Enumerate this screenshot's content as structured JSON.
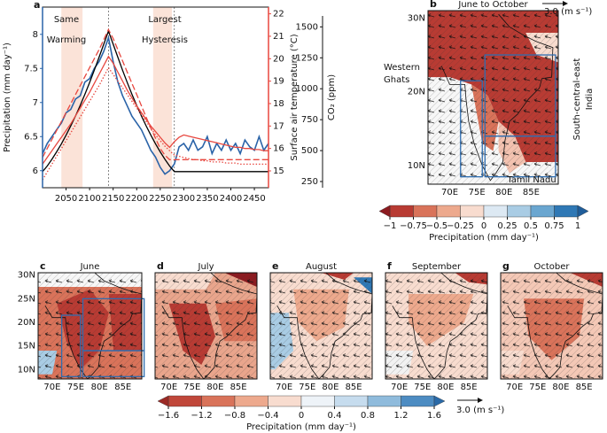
{
  "chart_data": [
    {
      "type": "line",
      "panel_label": "a",
      "y_label": "Precipitation (mm day⁻¹)",
      "y2_label": "Surface air temperature (°C)",
      "y3_label": "CO₂ (ppm)",
      "annotations": [
        [
          "Same",
          "Warming"
        ],
        [
          "Largest",
          "Hysteresis"
        ]
      ],
      "highlight_spans": [
        [
          2040,
          2085
        ],
        [
          2235,
          2275
        ]
      ],
      "vlines": [
        2140,
        2280
      ],
      "xlim": [
        2000,
        2480
      ],
      "xticks": [
        2050,
        2100,
        2150,
        2200,
        2250,
        2300,
        2350,
        2400,
        2450
      ],
      "ylim": [
        5.75,
        8.4
      ],
      "yticks": [
        6,
        6.5,
        7,
        7.5,
        8
      ],
      "y_color": "#2a63a8",
      "y2lim": [
        14.25,
        22.3
      ],
      "y2ticks": [
        15,
        16,
        17,
        18,
        19,
        20,
        21,
        22
      ],
      "y2_color": "#e8473f",
      "y3lim": [
        200,
        1660
      ],
      "y3ticks": [
        250,
        500,
        750,
        1000,
        1250,
        1500
      ],
      "x": [
        2000,
        2010,
        2020,
        2030,
        2040,
        2050,
        2060,
        2070,
        2080,
        2090,
        2100,
        2110,
        2120,
        2130,
        2140,
        2150,
        2160,
        2170,
        2180,
        2190,
        2200,
        2210,
        2220,
        2230,
        2240,
        2250,
        2260,
        2270,
        2280,
        2290,
        2300,
        2310,
        2320,
        2330,
        2340,
        2350,
        2360,
        2370,
        2380,
        2390,
        2400,
        2410,
        2420,
        2430,
        2440,
        2450,
        2460,
        2470,
        2480
      ],
      "series": [
        {
          "color": "#2a63a8",
          "axis": "y",
          "style": "solid",
          "values": [
            6.25,
            6.4,
            6.5,
            6.6,
            6.7,
            6.85,
            6.9,
            7.05,
            7.1,
            7.3,
            7.35,
            7.5,
            7.6,
            7.75,
            7.95,
            7.6,
            7.3,
            7.1,
            6.95,
            6.8,
            6.7,
            6.6,
            6.45,
            6.3,
            6.2,
            6.05,
            5.95,
            6.0,
            6.1,
            6.35,
            6.4,
            6.3,
            6.45,
            6.3,
            6.35,
            6.5,
            6.25,
            6.4,
            6.3,
            6.45,
            6.3,
            6.4,
            6.25,
            6.45,
            6.35,
            6.3,
            6.5,
            6.3,
            6.4
          ]
        },
        {
          "color": "#000000",
          "axis": "y3",
          "style": "solid",
          "values": [
            330,
            375,
            430,
            490,
            555,
            625,
            700,
            780,
            865,
            955,
            1050,
            1150,
            1255,
            1360,
            1465,
            1360,
            1255,
            1150,
            1050,
            955,
            865,
            780,
            700,
            625,
            555,
            490,
            430,
            375,
            330,
            330,
            330,
            330,
            330,
            330,
            330,
            330,
            330,
            330,
            330,
            330,
            330,
            330,
            330,
            330,
            330,
            330,
            330,
            330,
            330
          ]
        },
        {
          "color": "#e8473f",
          "axis": "y2",
          "style": "solid",
          "values": [
            15.3,
            15.6,
            15.9,
            16.2,
            16.5,
            16.8,
            17.1,
            17.45,
            17.8,
            18.15,
            18.5,
            18.9,
            19.3,
            19.7,
            20.1,
            19.8,
            19.4,
            19.0,
            18.6,
            18.25,
            17.9,
            17.6,
            17.3,
            17.0,
            16.75,
            16.5,
            16.25,
            16.05,
            16.3,
            16.5,
            16.6,
            16.55,
            16.5,
            16.45,
            16.4,
            16.35,
            16.3,
            16.25,
            16.2,
            16.15,
            16.1,
            16.05,
            16.05,
            16.0,
            16.0,
            15.95,
            15.95,
            15.9,
            15.9
          ]
        },
        {
          "color": "#e8473f",
          "axis": "y2",
          "style": "dashed",
          "values": [
            15.6,
            16.0,
            16.4,
            16.8,
            17.2,
            17.6,
            18.0,
            18.4,
            18.8,
            19.2,
            19.6,
            20.0,
            20.4,
            20.85,
            21.3,
            20.9,
            20.4,
            19.9,
            19.4,
            18.9,
            18.4,
            17.9,
            17.4,
            16.9,
            16.45,
            16.0,
            15.7,
            15.5,
            15.5,
            15.5,
            15.5,
            15.5,
            15.5,
            15.5,
            15.5,
            15.5,
            15.5,
            15.5,
            15.5,
            15.5,
            15.5,
            15.5,
            15.5,
            15.5,
            15.5,
            15.5,
            15.5,
            15.5,
            15.5
          ]
        },
        {
          "color": "#e8473f",
          "axis": "y2",
          "style": "dotted",
          "values": [
            14.6,
            14.95,
            15.3,
            15.65,
            16.0,
            16.35,
            16.7,
            17.05,
            17.4,
            17.75,
            18.1,
            18.45,
            18.8,
            19.2,
            19.6,
            19.3,
            19.0,
            18.7,
            18.4,
            18.1,
            17.8,
            17.5,
            17.2,
            16.9,
            16.6,
            16.35,
            16.1,
            15.9,
            15.7,
            15.65,
            15.6,
            15.55,
            15.5,
            15.5,
            15.45,
            15.45,
            15.4,
            15.4,
            15.4,
            15.35,
            15.35,
            15.35,
            15.3,
            15.3,
            15.3,
            15.3,
            15.3,
            15.3,
            15.3
          ]
        }
      ]
    },
    {
      "type": "map",
      "panel_label": "b",
      "title": "June to October",
      "wind_scale": "3.0  (m s⁻¹)",
      "xtick_labels": [
        "70E",
        "75E",
        "80E",
        "85E"
      ],
      "ytick_labels": [
        "30N",
        "20N",
        "10N"
      ],
      "region_labels": [
        [
          "Western",
          "Ghats"
        ],
        [
          "South-central-east",
          "India"
        ],
        [
          "Tamil Nadu"
        ]
      ]
    },
    {
      "type": "colorbar",
      "label": "Precipitation (mm day⁻¹)",
      "ticks": [
        {
          "value": -1,
          "label": "−1"
        },
        {
          "value": -0.75,
          "label": "−0.75"
        },
        {
          "value": -0.5,
          "label": "−0.5"
        },
        {
          "value": -0.25,
          "label": "−0.25"
        },
        0,
        0.25,
        0.5,
        0.75,
        1
      ],
      "colors": [
        "#b83b33",
        "#d9735a",
        "#eda98d",
        "#f8dccf",
        "#dde9f3",
        "#a9cce4",
        "#6aa6d0",
        "#2f78b5"
      ],
      "extend_colors": [
        "#8c1b20",
        "#1f5d9a"
      ]
    },
    {
      "type": "map",
      "panel_label": "c",
      "title": "June",
      "xtick_labels": [
        "70E",
        "75E",
        "80E",
        "85E"
      ],
      "ytick_labels": [
        "30N",
        "25N",
        "20N",
        "15N",
        "10N"
      ]
    },
    {
      "type": "map",
      "panel_label": "d",
      "title": "July",
      "xtick_labels": [
        "70E",
        "75E",
        "80E",
        "85E"
      ]
    },
    {
      "type": "map",
      "panel_label": "e",
      "title": "August",
      "xtick_labels": [
        "70E",
        "75E",
        "80E",
        "85E"
      ]
    },
    {
      "type": "map",
      "panel_label": "f",
      "title": "September",
      "xtick_labels": [
        "70E",
        "75E",
        "80E",
        "85E"
      ]
    },
    {
      "type": "map",
      "panel_label": "g",
      "title": "October",
      "xtick_labels": [
        "70E",
        "75E",
        "80E",
        "85E"
      ]
    },
    {
      "type": "colorbar",
      "label": "Precipitation (mm day⁻¹)",
      "wind_scale": "3.0  (m s⁻¹)",
      "ticks": [
        {
          "value": -1.6,
          "label": "−1.6"
        },
        {
          "value": -1.2,
          "label": "−1.2"
        },
        {
          "value": -0.8,
          "label": "−0.8"
        },
        {
          "value": -0.4,
          "label": "−0.4"
        },
        0,
        0.4,
        0.8,
        1.2,
        1.6
      ],
      "colors": [
        "#c0473a",
        "#d9735a",
        "#eda98d",
        "#f8dccf",
        "#eef3f8",
        "#c6dcee",
        "#8fbbdc",
        "#4d8cc2"
      ],
      "extend_colors": [
        "#9c2a25",
        "#2a6aa8"
      ]
    }
  ]
}
